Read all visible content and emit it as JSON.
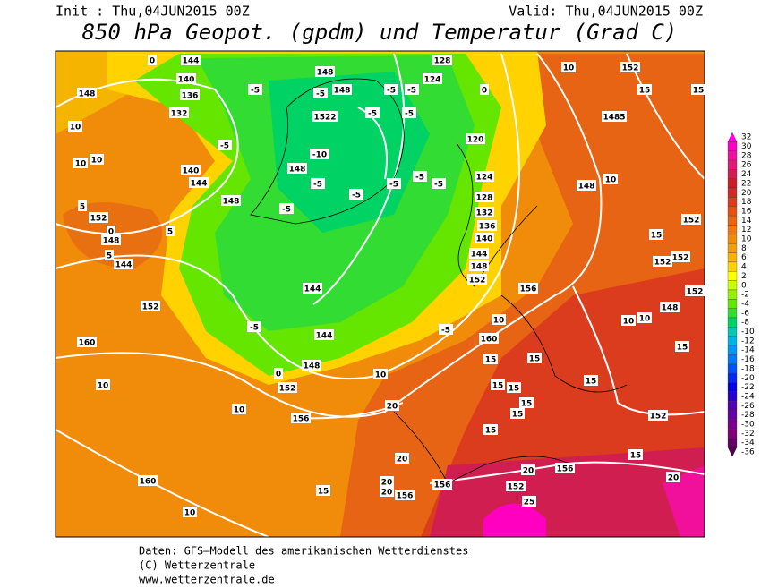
{
  "header": {
    "init": "Init : Thu,04JUN2015 00Z",
    "valid": "Valid: Thu,04JUN2015 00Z",
    "title": "850 hPa Geopot. (gpdm) und Temperatur (Grad C)"
  },
  "legend": {
    "labels": [
      32,
      30,
      28,
      26,
      24,
      22,
      20,
      18,
      16,
      14,
      12,
      10,
      8,
      6,
      4,
      2,
      0,
      -2,
      -4,
      -6,
      -8,
      -10,
      -12,
      -14,
      -16,
      -18,
      -20,
      -22,
      -24,
      -26,
      -28,
      -30,
      -32,
      -34,
      -36
    ],
    "colors": [
      "#ff00e6",
      "#ff00c0",
      "#f0109c",
      "#e01878",
      "#d01e50",
      "#c81e28",
      "#d22828",
      "#dc3c1e",
      "#e65014",
      "#e66414",
      "#f07814",
      "#f08c0a",
      "#f0a00a",
      "#f5b400",
      "#ffd200",
      "#ffff00",
      "#c8ff00",
      "#96f000",
      "#64e600",
      "#32dc32",
      "#00d264",
      "#00c8b4",
      "#00b4e6",
      "#0096ff",
      "#0078ff",
      "#0050ff",
      "#0028f0",
      "#0000dc",
      "#2800c8",
      "#5000b4",
      "#6400a0",
      "#78008c",
      "#800078",
      "#640064",
      "#500050"
    ]
  },
  "contour_labels": [
    "0",
    "144",
    "140",
    "136",
    "132",
    "148",
    "10",
    "10",
    "10",
    "-5",
    "-5",
    "148",
    "148",
    "1522",
    "-5",
    "-5",
    "-5",
    "-5",
    "128",
    "124",
    "0",
    "10",
    "152",
    "15",
    "15",
    "1485",
    "120",
    "-10",
    "-5",
    "148",
    "-5",
    "-5",
    "-5",
    "-5",
    "-5",
    "-5",
    "140",
    "144",
    "148",
    "124",
    "128",
    "132",
    "136",
    "140",
    "144",
    "148",
    "152",
    "148",
    "10",
    "152",
    "15",
    "152",
    "152",
    "152",
    "148",
    "10",
    "10",
    "15",
    "156",
    "10",
    "-5",
    "152",
    "144",
    "-5",
    "144",
    "148",
    "0",
    "152",
    "160",
    "160",
    "15",
    "15",
    "15",
    "15",
    "15",
    "15",
    "15",
    "15",
    "152",
    "15",
    "10",
    "10",
    "10",
    "156",
    "20",
    "20",
    "20",
    "156",
    "20",
    "160",
    "15",
    "20",
    "20",
    "156",
    "156",
    "152",
    "25",
    "10",
    "5",
    "152",
    "148",
    "144",
    "5",
    "5",
    "0"
  ],
  "footer": {
    "line1": "Daten: GFS—Modell des amerikanischen Wetterdienstes",
    "line2": "(C) Wetterzentrale",
    "line3": "www.wetterzentrale.de"
  }
}
